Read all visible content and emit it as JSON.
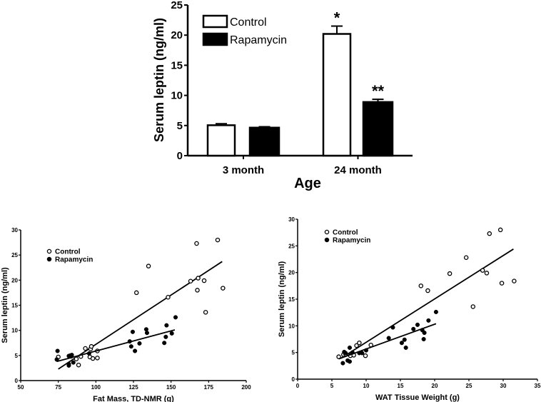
{
  "chart_data": [
    {
      "type": "bar",
      "title": "",
      "xlabel": "Age",
      "ylabel": "Serum leptin (ng/ml)",
      "ylim": [
        0,
        25
      ],
      "yticks": [
        "0",
        "5",
        "10",
        "15",
        "20",
        "25"
      ],
      "categories": [
        "3 month",
        "24 month"
      ],
      "series": [
        {
          "name": "Control",
          "fill": "#ffffff",
          "values": [
            5.05,
            20.2
          ],
          "errors": [
            0.25,
            1.3
          ]
        },
        {
          "name": "Rapamycin",
          "fill": "#000000",
          "values": [
            4.65,
            8.9
          ],
          "errors": [
            0.15,
            0.45
          ]
        }
      ],
      "annotations": [
        {
          "category": "24 month",
          "series": "Control",
          "text": "*"
        },
        {
          "category": "24 month",
          "series": "Rapamycin",
          "text": "**"
        }
      ],
      "legend": "top-left"
    },
    {
      "type": "scatter",
      "xlabel": "Fat Mass, TD-NMR (g)",
      "ylabel": "Serum leptin (ng/ml)",
      "xlim": [
        50,
        200
      ],
      "ylim": [
        0,
        30
      ],
      "xticks": [
        "50",
        "75",
        "100",
        "125",
        "150",
        "175",
        "200"
      ],
      "yticks": [
        "0",
        "5",
        "10",
        "15",
        "20",
        "25",
        "30"
      ],
      "legend": "top-left",
      "series": [
        {
          "name": "Control",
          "marker": "open-circle",
          "points": [
            [
              75,
              4.7
            ],
            [
              87,
              4.3
            ],
            [
              88.5,
              3.1
            ],
            [
              90,
              4.8
            ],
            [
              93,
              6.4
            ],
            [
              96,
              4.7
            ],
            [
              96.5,
              6.3
            ],
            [
              97,
              6.8
            ],
            [
              98,
              4.4
            ],
            [
              101,
              4.5
            ],
            [
              101,
              5.9
            ],
            [
              127,
              17.5
            ],
            [
              135,
              22.8
            ],
            [
              148,
              16.6
            ],
            [
              163,
              19.8
            ],
            [
              167,
              27.3
            ],
            [
              167.5,
              18
            ],
            [
              168,
              20.4
            ],
            [
              172,
              19.9
            ],
            [
              173,
              13.6
            ],
            [
              181,
              28
            ],
            [
              184.5,
              18.4
            ]
          ],
          "fit": [
            [
              75,
              2.3
            ],
            [
              184,
              23.7
            ]
          ]
        },
        {
          "name": "Rapamycin",
          "marker": "filled-circle",
          "points": [
            [
              74.5,
              5.9
            ],
            [
              74,
              4.2
            ],
            [
              82,
              4.9
            ],
            [
              82,
              3.3
            ],
            [
              82,
              3.0
            ],
            [
              83,
              5.0
            ],
            [
              84,
              5.1
            ],
            [
              83.5,
              4.8
            ],
            [
              85,
              3.6
            ],
            [
              95.5,
              5.4
            ],
            [
              122.5,
              7.8
            ],
            [
              123.5,
              6.8
            ],
            [
              124.5,
              9.7
            ],
            [
              126,
              5.9
            ],
            [
              129,
              7.4
            ],
            [
              133.5,
              10.2
            ],
            [
              134,
              9.5
            ],
            [
              145.5,
              7.5
            ],
            [
              146.5,
              8.7
            ],
            [
              147,
              11
            ],
            [
              150.5,
              9.4
            ],
            [
              153,
              12.6
            ]
          ],
          "fit": [
            [
              74,
              3.8
            ],
            [
              152.5,
              10.1
            ]
          ]
        }
      ]
    },
    {
      "type": "scatter",
      "xlabel": "WAT Tissue Weight (g)",
      "ylabel": "Serum leptin (ng/ml)",
      "xlim": [
        0,
        35
      ],
      "ylim": [
        0,
        30
      ],
      "xticks": [
        "0",
        "5",
        "10",
        "15",
        "20",
        "25",
        "30",
        "35"
      ],
      "yticks": [
        "0",
        "5",
        "10",
        "15",
        "20",
        "25",
        "30"
      ],
      "legend": "top-left",
      "series": [
        {
          "name": "Control",
          "marker": "open-circle",
          "points": [
            [
              6,
              4.2
            ],
            [
              6.7,
              4.6
            ],
            [
              7,
              4.7
            ],
            [
              7.7,
              4.4
            ],
            [
              8.2,
              4.5
            ],
            [
              8.6,
              6.3
            ],
            [
              9,
              6.8
            ],
            [
              9.9,
              4.4
            ],
            [
              10.7,
              6.4
            ],
            [
              18,
              17.5
            ],
            [
              19,
              16.6
            ],
            [
              22.2,
              19.8
            ],
            [
              24.6,
              22.8
            ],
            [
              25.6,
              13.6
            ],
            [
              27,
              20.4
            ],
            [
              27.6,
              19.9
            ],
            [
              28,
              27.3
            ],
            [
              29.6,
              28
            ],
            [
              29.8,
              18
            ],
            [
              31.6,
              18.4
            ]
          ],
          "fit": [
            [
              6.3,
              3.9
            ],
            [
              31.5,
              24.4
            ]
          ]
        },
        {
          "name": "Rapamycin",
          "marker": "filled-circle",
          "points": [
            [
              6.6,
              3.0
            ],
            [
              6.8,
              5.1
            ],
            [
              7,
              4.9
            ],
            [
              7.3,
              3.5
            ],
            [
              7.6,
              5.9
            ],
            [
              7.6,
              3.3
            ],
            [
              8,
              5.0
            ],
            [
              9,
              4.9
            ],
            [
              9.4,
              4.9
            ],
            [
              10,
              5.4
            ],
            [
              13.3,
              7.7
            ],
            [
              13.9,
              9.7
            ],
            [
              15.2,
              6.8
            ],
            [
              15.6,
              7.4
            ],
            [
              15.8,
              5.9
            ],
            [
              16.9,
              9.4
            ],
            [
              17.5,
              10.2
            ],
            [
              18.2,
              9.2
            ],
            [
              18.4,
              7.5
            ],
            [
              18.5,
              8.7
            ],
            [
              19.1,
              11
            ],
            [
              20.2,
              12.6
            ]
          ],
          "fit": [
            [
              6,
              3.8
            ],
            [
              20.2,
              10.4
            ]
          ]
        }
      ]
    }
  ]
}
